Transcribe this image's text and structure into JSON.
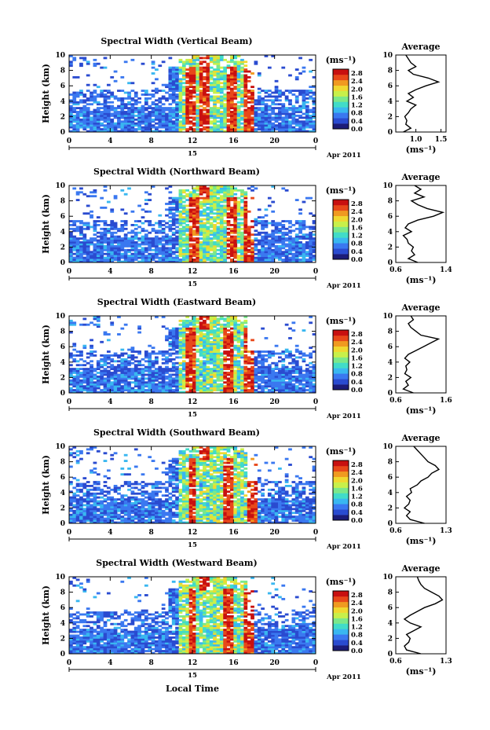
{
  "figure": {
    "xlabel_bottom": "Local Time",
    "date_label": "Apr 2011",
    "day_label": "15",
    "unit_label": "(ms⁻¹)",
    "average_title": "Average",
    "height_label": "Height (km)"
  },
  "chart_data": [
    {
      "type": "heatmap",
      "title": "Spectral Width (Vertical Beam)",
      "xlabel": "Local Time",
      "ylabel": "Height (km)",
      "x_ticks": [
        "0",
        "4",
        "8",
        "12",
        "16",
        "20",
        "0"
      ],
      "y_ticks": [
        "0",
        "2",
        "4",
        "6",
        "8",
        "10"
      ],
      "xlim": [
        0,
        24
      ],
      "ylim": [
        0,
        10
      ],
      "colorbar": {
        "label": "(ms⁻¹)",
        "ticks": [
          "2.8",
          "2.4",
          "2.0",
          "1.6",
          "1.2",
          "0.8",
          "0.4",
          "0.0"
        ],
        "range": [
          0,
          3.0
        ]
      },
      "colormap": [
        "#1c1c78",
        "#2a4bd0",
        "#3a78f0",
        "#39b7f0",
        "#41dcc8",
        "#7be88a",
        "#c8f04a",
        "#f0d830",
        "#f09a20",
        "#e8481a",
        "#c81010"
      ],
      "cell_values_hint": {
        "ridges_hours": [
          11.8,
          13.2,
          15.8,
          17.4
        ]
      },
      "average_profile": {
        "title": "Average",
        "xlabel": "(ms⁻¹)",
        "x_ticks": [
          "1.0",
          "1.5"
        ],
        "xlim": [
          0.6,
          1.6
        ],
        "heights_km": [
          0,
          0.5,
          1,
          1.5,
          2,
          2.5,
          3,
          3.5,
          4,
          4.5,
          5,
          5.5,
          6,
          6.5,
          7,
          7.5,
          8,
          8.5,
          9,
          9.5,
          10
        ],
        "values": [
          0.75,
          0.9,
          0.8,
          0.82,
          0.78,
          0.85,
          0.9,
          1.0,
          0.82,
          0.95,
          0.85,
          1.0,
          1.2,
          1.45,
          1.25,
          0.95,
          0.85,
          1.0,
          0.9,
          0.85,
          0.8
        ]
      }
    },
    {
      "type": "heatmap",
      "title": "Spectral Width (Northward Beam)",
      "xlabel": "Local Time",
      "ylabel": "Height (km)",
      "x_ticks": [
        "0",
        "4",
        "8",
        "12",
        "16",
        "20",
        "0"
      ],
      "y_ticks": [
        "0",
        "2",
        "4",
        "6",
        "8",
        "10"
      ],
      "xlim": [
        0,
        24
      ],
      "ylim": [
        0,
        10
      ],
      "colorbar": {
        "label": "(ms⁻¹)",
        "ticks": [
          "2.8",
          "2.4",
          "2.0",
          "1.6",
          "1.2",
          "0.8",
          "0.4",
          "0.0"
        ],
        "range": [
          0,
          3.0
        ]
      },
      "colormap": [
        "#1c1c78",
        "#2a4bd0",
        "#3a78f0",
        "#39b7f0",
        "#41dcc8",
        "#7be88a",
        "#c8f04a",
        "#f0d830",
        "#f09a20",
        "#e8481a",
        "#c81010"
      ],
      "cell_values_hint": {
        "ridges_hours": [
          12.2,
          15.8,
          17.6
        ]
      },
      "average_profile": {
        "title": "Average",
        "xlabel": "(ms⁻¹)",
        "x_ticks": [
          "0.6",
          "1.4"
        ],
        "xlim": [
          0.6,
          1.4
        ],
        "heights_km": [
          0,
          0.5,
          1,
          1.5,
          2,
          2.5,
          3,
          3.5,
          4,
          4.5,
          5,
          5.5,
          6,
          6.5,
          7,
          7.5,
          8,
          8.5,
          9,
          9.5,
          10
        ],
        "values": [
          0.95,
          0.8,
          0.9,
          0.85,
          0.88,
          0.8,
          0.78,
          0.72,
          0.85,
          0.75,
          0.8,
          0.95,
          1.2,
          1.35,
          1.1,
          0.95,
          0.85,
          1.05,
          0.9,
          1.0,
          0.9
        ]
      }
    },
    {
      "type": "heatmap",
      "title": "Spectral Width (Eastward Beam)",
      "xlabel": "Local Time",
      "ylabel": "Height (km)",
      "x_ticks": [
        "0",
        "4",
        "8",
        "12",
        "16",
        "20",
        "0"
      ],
      "y_ticks": [
        "0",
        "2",
        "4",
        "6",
        "8",
        "10"
      ],
      "xlim": [
        0,
        24
      ],
      "ylim": [
        0,
        10
      ],
      "colorbar": {
        "label": "(ms⁻¹)",
        "ticks": [
          "2.8",
          "2.4",
          "2.0",
          "1.6",
          "1.2",
          "0.8",
          "0.4",
          "0.0"
        ],
        "range": [
          0,
          3.0
        ]
      },
      "colormap": [
        "#1c1c78",
        "#2a4bd0",
        "#3a78f0",
        "#39b7f0",
        "#41dcc8",
        "#7be88a",
        "#c8f04a",
        "#f0d830",
        "#f09a20",
        "#e8481a",
        "#c81010"
      ],
      "cell_values_hint": {
        "ridges_hours": [
          11.8,
          15.6,
          17.6
        ]
      },
      "average_profile": {
        "title": "Average",
        "xlabel": "(ms⁻¹)",
        "x_ticks": [
          "0.6",
          "1.6"
        ],
        "xlim": [
          0.6,
          1.6
        ],
        "heights_km": [
          0,
          0.5,
          1,
          1.5,
          2,
          2.5,
          3,
          3.5,
          4,
          4.5,
          5,
          5.5,
          6,
          6.5,
          7,
          7.5,
          8,
          8.5,
          9,
          9.5,
          10
        ],
        "values": [
          0.95,
          0.75,
          0.85,
          0.8,
          0.9,
          0.78,
          0.82,
          0.8,
          0.88,
          0.78,
          0.85,
          1.0,
          1.15,
          1.3,
          1.45,
          1.1,
          1.0,
          0.9,
          0.85,
          0.95,
          0.9
        ]
      }
    },
    {
      "type": "heatmap",
      "title": "Spectral Width (Southward Beam)",
      "xlabel": "Local Time",
      "ylabel": "Height (km)",
      "x_ticks": [
        "0",
        "4",
        "8",
        "12",
        "16",
        "20",
        "0"
      ],
      "y_ticks": [
        "0",
        "2",
        "4",
        "6",
        "8",
        "10"
      ],
      "xlim": [
        0,
        24
      ],
      "ylim": [
        0,
        10
      ],
      "colorbar": {
        "label": "(ms⁻¹)",
        "ticks": [
          "2.8",
          "2.4",
          "2.0",
          "1.6",
          "1.2",
          "0.8",
          "0.4",
          "0.0"
        ],
        "range": [
          0,
          3.0
        ]
      },
      "colormap": [
        "#1c1c78",
        "#2a4bd0",
        "#3a78f0",
        "#39b7f0",
        "#41dcc8",
        "#7be88a",
        "#c8f04a",
        "#f0d830",
        "#f09a20",
        "#e8481a",
        "#c81010"
      ],
      "cell_values_hint": {
        "ridges_hours": [
          12.0,
          15.6,
          17.8
        ]
      },
      "average_profile": {
        "title": "Average",
        "xlabel": "(ms⁻¹)",
        "x_ticks": [
          "0.6",
          "1.3"
        ],
        "xlim": [
          0.6,
          1.3
        ],
        "heights_km": [
          0,
          0.5,
          1,
          1.5,
          2,
          2.5,
          3,
          3.5,
          4,
          4.5,
          5,
          5.5,
          6,
          6.5,
          7,
          7.5,
          8,
          8.5,
          9,
          9.5,
          10
        ],
        "values": [
          1.0,
          0.8,
          0.75,
          0.8,
          0.72,
          0.78,
          0.8,
          0.75,
          0.82,
          0.8,
          0.9,
          0.95,
          1.05,
          1.1,
          1.2,
          1.15,
          1.05,
          1.0,
          0.95,
          0.9,
          0.85
        ]
      }
    },
    {
      "type": "heatmap",
      "title": "Spectral Width (Westward Beam)",
      "xlabel": "Local Time",
      "ylabel": "Height (km)",
      "x_ticks": [
        "0",
        "4",
        "8",
        "12",
        "16",
        "20",
        "0"
      ],
      "y_ticks": [
        "0",
        "2",
        "4",
        "6",
        "8",
        "10"
      ],
      "xlim": [
        0,
        24
      ],
      "ylim": [
        0,
        10
      ],
      "colorbar": {
        "label": "(ms⁻¹)",
        "ticks": [
          "2.8",
          "2.4",
          "2.0",
          "1.6",
          "1.2",
          "0.8",
          "0.4",
          "0.0"
        ],
        "range": [
          0,
          3.0
        ]
      },
      "colormap": [
        "#1c1c78",
        "#2a4bd0",
        "#3a78f0",
        "#39b7f0",
        "#41dcc8",
        "#7be88a",
        "#c8f04a",
        "#f0d830",
        "#f09a20",
        "#e8481a",
        "#c81010"
      ],
      "cell_values_hint": {
        "ridges_hours": [
          12.0,
          15.6,
          17.6
        ]
      },
      "average_profile": {
        "title": "Average",
        "xlabel": "(ms⁻¹)",
        "x_ticks": [
          "0.6",
          "1.3"
        ],
        "xlim": [
          0.6,
          1.3
        ],
        "heights_km": [
          0,
          0.5,
          1,
          1.5,
          2,
          2.5,
          3,
          3.5,
          4,
          4.5,
          5,
          5.5,
          6,
          6.5,
          7,
          7.5,
          8,
          8.5,
          9,
          9.5,
          10
        ],
        "values": [
          0.95,
          0.75,
          0.72,
          0.78,
          0.8,
          0.75,
          0.85,
          0.95,
          0.8,
          0.72,
          0.8,
          0.9,
          1.0,
          1.15,
          1.25,
          1.2,
          1.1,
          1.0,
          0.95,
          0.92,
          0.9
        ]
      }
    }
  ]
}
